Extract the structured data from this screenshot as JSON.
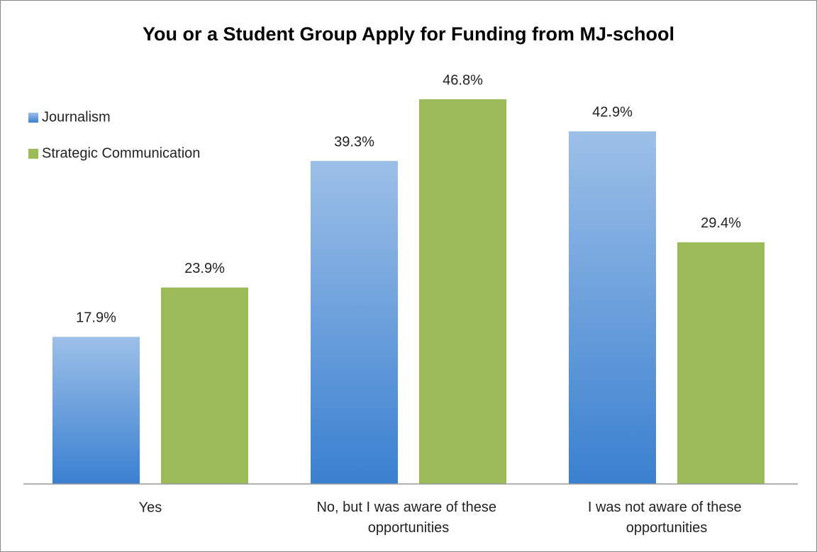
{
  "chart_data": {
    "type": "bar",
    "title": "You or a Student Group Apply for Funding from MJ-school",
    "categories": [
      "Yes",
      "No, but I was aware of these opportunities",
      "I was not aware of these opportunities"
    ],
    "series": [
      {
        "name": "Journalism",
        "color": "#3a80d0",
        "gradient": true,
        "values": [
          17.9,
          39.3,
          42.9
        ],
        "value_labels": [
          "17.9%",
          "39.3%",
          "42.9%"
        ]
      },
      {
        "name": "Strategic Communication",
        "color": "#9bbb59",
        "values": [
          23.9,
          46.8,
          29.4
        ],
        "value_labels": [
          "23.9%",
          "46.8%",
          "29.4%"
        ]
      }
    ],
    "ylim": [
      0,
      50
    ],
    "legend": "left"
  }
}
